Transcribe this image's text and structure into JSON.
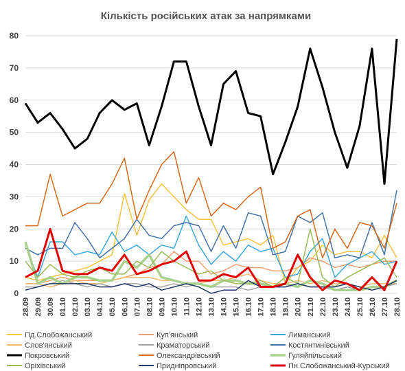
{
  "chart_data": {
    "type": "line",
    "title": "Кількість російських атак за напрямками",
    "xlabel": "",
    "ylabel": "",
    "ylim": [
      0,
      80
    ],
    "yticks": [
      0,
      10,
      20,
      30,
      40,
      50,
      60,
      70,
      80
    ],
    "grid": true,
    "legend_position": "bottom",
    "categories": [
      "28.09",
      "29.09",
      "30.09",
      "01.10",
      "02.10",
      "03.10",
      "04.10",
      "05.10",
      "06.10",
      "07.10",
      "08.10",
      "09.10",
      "10.10",
      "11.10",
      "12.10",
      "13.10",
      "14.10",
      "15.10",
      "16.10",
      "17.10",
      "18.10",
      "19.10",
      "20.10",
      "21.10",
      "22.10",
      "23.10",
      "24.10",
      "25.10",
      "26.10",
      "27.10",
      "28.10"
    ],
    "x_tick_labels": [
      "28.09",
      "29.09",
      "30.09",
      "01.10",
      "02.10",
      "03.10",
      "04.10",
      "05.10",
      "06.10",
      "07.10",
      "08.10",
      "09.10",
      "10.10",
      "11.10",
      "12.10",
      "13.10",
      "14.10",
      "15.10",
      "16.10",
      "17.10",
      "18.10",
      "19.10",
      "20.10",
      "21.10",
      "22.10",
      "23.10",
      "24.10",
      "25.10",
      "26.10",
      "27.10",
      "28.10"
    ],
    "series": [
      {
        "name": "Пд.Слобожанський",
        "color": "#F5C342",
        "width": 1.5,
        "values": [
          5,
          4,
          5,
          6,
          7,
          8,
          10,
          12,
          31,
          18,
          29,
          34,
          30,
          26,
          23,
          23,
          15,
          16,
          17,
          15,
          18,
          3,
          8,
          10,
          15,
          12,
          13,
          13,
          11,
          18,
          11
        ]
      },
      {
        "name": "Куп'янський",
        "color": "#F0A070",
        "width": 1.5,
        "values": [
          3,
          3,
          4,
          5,
          4,
          4,
          4,
          4,
          5,
          6,
          8,
          9,
          13,
          10,
          10,
          6,
          7,
          9,
          8,
          8,
          7,
          7,
          8,
          11,
          10,
          8,
          9,
          8,
          9,
          10,
          10
        ]
      },
      {
        "name": "Лиманський",
        "color": "#3EA7D8",
        "width": 1.5,
        "values": [
          15,
          5,
          16,
          16,
          12,
          13,
          12,
          19,
          13,
          15,
          12,
          15,
          14,
          24,
          15,
          9,
          13,
          10,
          15,
          13,
          14,
          5,
          6,
          13,
          17,
          5,
          9,
          11,
          13,
          9,
          10
        ]
      },
      {
        "name": "Слов'янський",
        "color": "#F5B870",
        "width": 1.5,
        "values": [
          3,
          3,
          2,
          3,
          4,
          3,
          3,
          4,
          5,
          5,
          5,
          4,
          4,
          3,
          3,
          4,
          4,
          5,
          6,
          4,
          3,
          3,
          4,
          3,
          4,
          3,
          3,
          2,
          3,
          3,
          3
        ]
      },
      {
        "name": "Краматорський",
        "color": "#A6A6A6",
        "width": 1.5,
        "values": [
          2,
          2,
          3,
          4,
          3,
          2,
          3,
          2,
          3,
          3,
          2,
          2,
          3,
          2,
          3,
          2,
          2,
          2,
          1,
          2,
          2,
          2,
          3,
          2,
          2,
          1,
          2,
          1,
          2,
          2,
          3
        ]
      },
      {
        "name": "Костянтинівський",
        "color": "#4572A7",
        "width": 1.5,
        "values": [
          14,
          12,
          14,
          14,
          22,
          17,
          11,
          14,
          17,
          23,
          18,
          17,
          21,
          22,
          21,
          13,
          21,
          14,
          25,
          24,
          12,
          13,
          24,
          22,
          25,
          11,
          12,
          11,
          22,
          12,
          32
        ]
      },
      {
        "name": "Покровський",
        "color": "#000000",
        "width": 3,
        "values": [
          59,
          53,
          56,
          51,
          45,
          48,
          56,
          60,
          57,
          59,
          46,
          58,
          72,
          72,
          58,
          46,
          65,
          69,
          56,
          55,
          37,
          47,
          58,
          76,
          64,
          50,
          39,
          52,
          76,
          34,
          79
        ]
      },
      {
        "name": "Олександрівський",
        "color": "#D2691E",
        "width": 1.5,
        "values": [
          21,
          21,
          37,
          24,
          26,
          28,
          28,
          34,
          42,
          23,
          32,
          40,
          44,
          28,
          36,
          24,
          28,
          26,
          30,
          33,
          14,
          16,
          24,
          26,
          11,
          20,
          14,
          22,
          21,
          14,
          28
        ]
      },
      {
        "name": "Гуляйпільський",
        "color": "#A9D18E",
        "width": 3.5,
        "values": [
          16,
          3,
          5,
          3,
          5,
          5,
          4,
          4,
          10,
          8,
          12,
          5,
          4,
          3,
          3,
          2,
          4,
          4,
          3,
          3,
          2,
          3,
          2,
          4,
          3,
          1,
          1,
          1,
          2,
          2,
          4
        ]
      },
      {
        "name": "Оріхівський",
        "color": "#9BBB59",
        "width": 1.5,
        "values": [
          10,
          5,
          9,
          6,
          5,
          7,
          8,
          6,
          6,
          10,
          8,
          13,
          10,
          8,
          6,
          7,
          4,
          3,
          3,
          4,
          2,
          5,
          3,
          20,
          5,
          2,
          5,
          7,
          9,
          11,
          5
        ]
      },
      {
        "name": "Придніпровський",
        "color": "#1F3864",
        "width": 1.5,
        "values": [
          1,
          2,
          3,
          3,
          3,
          3,
          2,
          2,
          3,
          2,
          3,
          1,
          2,
          3,
          2,
          0,
          1,
          1,
          4,
          2,
          2,
          2,
          3,
          2,
          2,
          2,
          3,
          2,
          1,
          2,
          4
        ]
      },
      {
        "name": "Пн.Слобожанський-Курський",
        "color": "#E00000",
        "width": 3,
        "values": [
          5,
          7,
          20,
          7,
          6,
          6,
          8,
          7,
          12,
          6,
          7,
          9,
          10,
          13,
          4,
          4,
          6,
          5,
          8,
          2,
          2,
          3,
          12,
          5,
          1,
          4,
          3,
          1,
          5,
          1,
          10
        ]
      }
    ]
  }
}
